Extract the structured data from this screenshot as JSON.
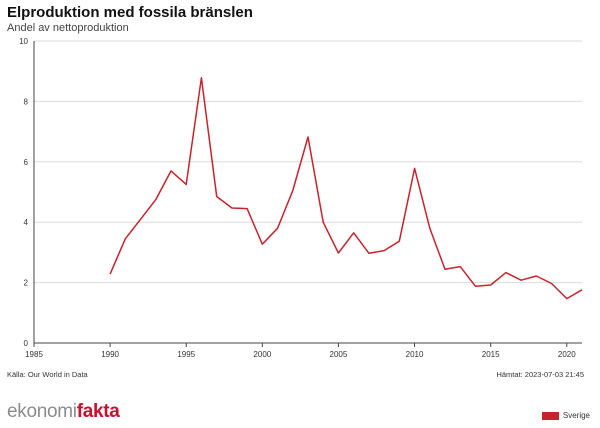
{
  "header": {
    "title": "Elproduktion med fossila bränslen",
    "subtitle": "Andel av nettoproduktion"
  },
  "footer": {
    "source": "Källa: Our World in Data",
    "fetched": "Hämtat: 2023-07-03 21:45",
    "logo_part1": "ekonomi",
    "logo_part2": "fakta"
  },
  "legend": {
    "label": "Sverige"
  },
  "colors": {
    "series": "#c8232c",
    "grid": "#dcdcdc",
    "axis": "#444444"
  },
  "chart_data": {
    "type": "line",
    "title": "Elproduktion med fossila bränslen",
    "subtitle": "Andel av nettoproduktion",
    "xlabel": "",
    "ylabel": "",
    "xlim": [
      1985,
      2021
    ],
    "ylim": [
      0,
      10
    ],
    "xticks": [
      1985,
      1990,
      1995,
      2000,
      2005,
      2010,
      2015,
      2020
    ],
    "yticks": [
      0,
      2,
      4,
      6,
      8,
      10
    ],
    "grid": true,
    "legend_position": "bottom-right",
    "series": [
      {
        "name": "Sverige",
        "x": [
          1990,
          1991,
          1992,
          1993,
          1994,
          1995,
          1996,
          1997,
          1998,
          1999,
          2000,
          2001,
          2002,
          2003,
          2004,
          2005,
          2006,
          2007,
          2008,
          2009,
          2010,
          2011,
          2012,
          2013,
          2014,
          2015,
          2016,
          2017,
          2018,
          2019,
          2020,
          2021
        ],
        "values": [
          2.28,
          3.45,
          4.1,
          4.75,
          5.7,
          5.25,
          8.78,
          4.85,
          4.47,
          4.45,
          3.27,
          3.8,
          5.05,
          6.82,
          4.0,
          2.98,
          3.65,
          2.97,
          3.06,
          3.37,
          5.78,
          3.8,
          2.44,
          2.53,
          1.88,
          1.92,
          2.33,
          2.08,
          2.22,
          1.97,
          1.47,
          1.76
        ]
      }
    ]
  }
}
